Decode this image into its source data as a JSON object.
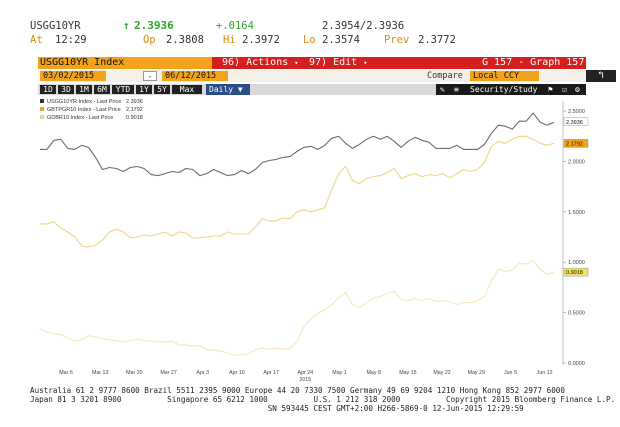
{
  "quote": {
    "ticker": "USGG10YR",
    "last": "2.3936",
    "change": "+.0164",
    "bid_ask": "2.3954/2.3936",
    "at_label": "At",
    "at_time": "12:29",
    "open_label": "Op",
    "open": "2.3808",
    "high_label": "Hi",
    "high": "2.3972",
    "low_label": "Lo",
    "low": "2.3574",
    "prev_label": "Prev",
    "prev": "2.3772"
  },
  "toolbar": {
    "index_label": "USGG10YR Index",
    "actions_label": "Actions",
    "actions_num": "96)",
    "edit_label": "Edit",
    "edit_num": "97)",
    "page_label": "G 157 - Graph 157"
  },
  "dates": {
    "start": "03/02/2015",
    "sep": "-",
    "end": "06/12/2015",
    "compare_label": "Compare",
    "currency": "Local CCY"
  },
  "ranges": [
    "1D",
    "3D",
    "1M",
    "6M",
    "YTD",
    "1Y",
    "5Y",
    "Max"
  ],
  "frequency": "Daily",
  "frequency_arrow": "▼",
  "security_label": "Security/Study",
  "icons": [
    "pencil-icon",
    "lines-icon",
    "flag-icon",
    "checkbox-icon",
    "gear-icon",
    "return-arrow-icon"
  ],
  "colors": {
    "accent_orange": "#f2a31a",
    "accent_red": "#d51e1e",
    "daily_blue": "#2c4e87",
    "series_us": "#6b6b6b",
    "series_gb": "#f0d58a",
    "series_de": "#f5e9b8"
  },
  "chart_data": {
    "type": "line",
    "x_ticks": [
      "Mar 6",
      "Mar 13",
      "Mar 20",
      "Mar 27",
      "Apr 3",
      "Apr 10",
      "Apr 17",
      "Apr 24",
      "May 1",
      "May 8",
      "May 15",
      "May 22",
      "May 29",
      "Jun 5",
      "Jun 12"
    ],
    "x_year": "2015",
    "ylim": [
      0,
      2.6
    ],
    "y_ticks": [
      "2.5000",
      "2.0000",
      "1.5000",
      "1.0000",
      "0.5000",
      "0.0000"
    ],
    "grid": false,
    "legend_position": "top-left",
    "series": [
      {
        "name": "USGG10YR Index - Last Price",
        "last": "2.3936",
        "values": [
          2.12,
          2.12,
          2.21,
          2.22,
          2.13,
          2.12,
          2.16,
          2.14,
          2.04,
          1.92,
          1.94,
          1.93,
          1.9,
          1.94,
          1.95,
          1.93,
          1.87,
          1.86,
          1.88,
          1.9,
          1.89,
          1.93,
          1.92,
          1.86,
          1.88,
          1.92,
          1.89,
          1.86,
          1.87,
          1.91,
          1.88,
          1.92,
          1.99,
          2.01,
          2.02,
          2.04,
          2.05,
          2.1,
          2.14,
          2.15,
          2.12,
          2.16,
          2.23,
          2.25,
          2.18,
          2.13,
          2.17,
          2.22,
          2.25,
          2.22,
          2.25,
          2.2,
          2.14,
          2.2,
          2.24,
          2.21,
          2.19,
          2.13,
          2.13,
          2.13,
          2.16,
          2.12,
          2.12,
          2.12,
          2.17,
          2.28,
          2.36,
          2.35,
          2.32,
          2.4,
          2.4,
          2.48,
          2.39,
          2.36,
          2.39
        ]
      },
      {
        "name": "GBTPGR10 Index - Last Price",
        "last": "2.1792",
        "values": [
          1.38,
          1.38,
          1.4,
          1.34,
          1.3,
          1.25,
          1.16,
          1.15,
          1.17,
          1.22,
          1.3,
          1.33,
          1.3,
          1.24,
          1.25,
          1.27,
          1.26,
          1.28,
          1.3,
          1.26,
          1.3,
          1.29,
          1.24,
          1.24,
          1.25,
          1.26,
          1.26,
          1.3,
          1.28,
          1.28,
          1.28,
          1.35,
          1.43,
          1.41,
          1.41,
          1.44,
          1.43,
          1.5,
          1.52,
          1.5,
          1.52,
          1.54,
          1.72,
          1.88,
          1.95,
          1.81,
          1.78,
          1.83,
          1.85,
          1.86,
          1.89,
          1.93,
          1.83,
          1.86,
          1.88,
          1.85,
          1.87,
          1.86,
          1.88,
          1.84,
          1.88,
          1.92,
          1.9,
          1.92,
          1.99,
          2.15,
          2.2,
          2.18,
          2.22,
          2.25,
          2.25,
          2.22,
          2.18,
          2.16,
          2.18
        ]
      },
      {
        "name": "GDBR10 Index - Last Price",
        "last": "0.9018",
        "values": [
          0.34,
          0.31,
          0.29,
          0.28,
          0.25,
          0.22,
          0.23,
          0.27,
          0.26,
          0.24,
          0.23,
          0.22,
          0.21,
          0.22,
          0.24,
          0.22,
          0.22,
          0.21,
          0.21,
          0.22,
          0.18,
          0.18,
          0.17,
          0.17,
          0.13,
          0.13,
          0.12,
          0.1,
          0.08,
          0.08,
          0.09,
          0.13,
          0.15,
          0.14,
          0.15,
          0.14,
          0.15,
          0.21,
          0.36,
          0.44,
          0.49,
          0.53,
          0.58,
          0.65,
          0.7,
          0.58,
          0.55,
          0.6,
          0.64,
          0.66,
          0.69,
          0.71,
          0.63,
          0.62,
          0.64,
          0.62,
          0.64,
          0.61,
          0.62,
          0.61,
          0.58,
          0.6,
          0.6,
          0.62,
          0.66,
          0.82,
          0.93,
          0.91,
          0.92,
          0.99,
          0.98,
          1.02,
          0.93,
          0.88,
          0.9
        ]
      }
    ]
  },
  "footer": {
    "line1": "Australia 61 2 9777 8600 Brazil 5511 2395 9000 Europe 44 20 7330 7500 Germany 49 69 9204 1210 Hong Kong 852 2977 6000",
    "line2": "Japan 81 3 3201 8900          Singapore 65 6212 1000          U.S. 1 212 318 2000          Copyright 2015 Bloomberg Finance L.P.",
    "line3": "                                                    SN 593445 CEST GMT+2:00 H266-5869-0 12-Jun-2015 12:29:59"
  }
}
